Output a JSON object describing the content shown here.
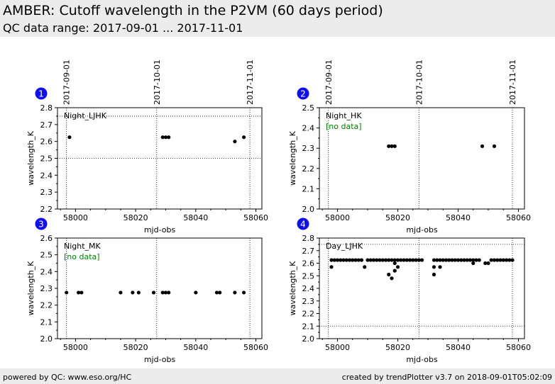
{
  "header": {
    "title": "AMBER: Cutoff wavelength in the P2VM (60 days period)",
    "subtitle": "QC data range: 2017-09-01 ... 2017-11-01"
  },
  "footer": {
    "left": "powered by QC: www.eso.org/HC",
    "right": "created by trendPlotter v3.7 on 2018-09-01T05:02:09"
  },
  "chart_data": [
    {
      "type": "scatter",
      "badge": "1",
      "label": "Night_LJHK",
      "no_data": "",
      "xlabel": "mjd-obs",
      "ylabel": "wavelength_K",
      "xlim": [
        57994,
        58062
      ],
      "ylim": [
        2.2,
        2.8
      ],
      "xticks": [
        58000,
        58020,
        58040,
        58060
      ],
      "yticks": [
        2.2,
        2.3,
        2.4,
        2.5,
        2.6,
        2.7,
        2.8
      ],
      "date_markers": [
        {
          "x": 57997,
          "label": "2017-09-01"
        },
        {
          "x": 58027,
          "label": "2017-10-01"
        },
        {
          "x": 58058,
          "label": "2017-11-01"
        }
      ],
      "hlines": [
        2.5,
        2.75
      ],
      "points": [
        {
          "x": 57998,
          "y": 2.625
        },
        {
          "x": 58029,
          "y": 2.625
        },
        {
          "x": 58030,
          "y": 2.625
        },
        {
          "x": 58031,
          "y": 2.625
        },
        {
          "x": 58053,
          "y": 2.6
        },
        {
          "x": 58056,
          "y": 2.625
        }
      ]
    },
    {
      "type": "scatter",
      "badge": "2",
      "label": "Night_HK",
      "no_data": "[no data]",
      "xlabel": "mjd-obs",
      "ylabel": "wavelength_K",
      "xlim": [
        57994,
        58062
      ],
      "ylim": [
        2.0,
        2.5
      ],
      "xticks": [
        58000,
        58020,
        58040,
        58060
      ],
      "yticks": [
        2.0,
        2.1,
        2.2,
        2.3,
        2.4,
        2.5
      ],
      "date_markers": [
        {
          "x": 57997,
          "label": "2017-09-01"
        },
        {
          "x": 58027,
          "label": "2017-10-01"
        },
        {
          "x": 58058,
          "label": "2017-11-01"
        }
      ],
      "hlines": [],
      "points": [
        {
          "x": 58017,
          "y": 2.31
        },
        {
          "x": 58018,
          "y": 2.31
        },
        {
          "x": 58019,
          "y": 2.31
        },
        {
          "x": 58048,
          "y": 2.31
        },
        {
          "x": 58052,
          "y": 2.31
        }
      ]
    },
    {
      "type": "scatter",
      "badge": "3",
      "label": "Night_MK",
      "no_data": "[no data]",
      "xlabel": "mjd-obs",
      "ylabel": "wavelength_K",
      "xlim": [
        57994,
        58062
      ],
      "ylim": [
        2.0,
        2.6
      ],
      "xticks": [
        58000,
        58020,
        58040,
        58060
      ],
      "yticks": [
        2.0,
        2.1,
        2.2,
        2.3,
        2.4,
        2.5,
        2.6
      ],
      "date_markers": [
        {
          "x": 57997,
          "label": "2017-09-01"
        },
        {
          "x": 58027,
          "label": "2017-10-01"
        },
        {
          "x": 58058,
          "label": "2017-11-01"
        }
      ],
      "hlines": [],
      "points": [
        {
          "x": 57997,
          "y": 2.275
        },
        {
          "x": 58001,
          "y": 2.275
        },
        {
          "x": 58002,
          "y": 2.275
        },
        {
          "x": 58015,
          "y": 2.275
        },
        {
          "x": 58019,
          "y": 2.275
        },
        {
          "x": 58021,
          "y": 2.275
        },
        {
          "x": 58026,
          "y": 2.275
        },
        {
          "x": 58029,
          "y": 2.275
        },
        {
          "x": 58030,
          "y": 2.275
        },
        {
          "x": 58031,
          "y": 2.275
        },
        {
          "x": 58040,
          "y": 2.275
        },
        {
          "x": 58047,
          "y": 2.275
        },
        {
          "x": 58048,
          "y": 2.275
        },
        {
          "x": 58053,
          "y": 2.275
        },
        {
          "x": 58056,
          "y": 2.275
        }
      ]
    },
    {
      "type": "scatter",
      "badge": "4",
      "label": "Day_LJHK",
      "no_data": "",
      "xlabel": "mjd-obs",
      "ylabel": "wavelength_K",
      "xlim": [
        57994,
        58062
      ],
      "ylim": [
        2.0,
        2.8
      ],
      "xticks": [
        58000,
        58020,
        58040,
        58060
      ],
      "yticks": [
        2.0,
        2.1,
        2.2,
        2.3,
        2.4,
        2.5,
        2.6,
        2.7,
        2.8
      ],
      "date_markers": [
        {
          "x": 57997,
          "label": "2017-09-01"
        },
        {
          "x": 58027,
          "label": "2017-10-01"
        },
        {
          "x": 58058,
          "label": "2017-11-01"
        }
      ],
      "hlines": [
        2.1,
        2.75
      ],
      "main_level": 2.625,
      "main_run": [
        [
          57998,
          58008
        ],
        [
          58010,
          58028
        ],
        [
          58032,
          58047
        ],
        [
          58051,
          58058
        ]
      ],
      "points": [
        {
          "x": 57998,
          "y": 2.57
        },
        {
          "x": 58009,
          "y": 2.57
        },
        {
          "x": 58017,
          "y": 2.51
        },
        {
          "x": 58018,
          "y": 2.48
        },
        {
          "x": 58019,
          "y": 2.54
        },
        {
          "x": 58019,
          "y": 2.6
        },
        {
          "x": 58020,
          "y": 2.57
        },
        {
          "x": 58032,
          "y": 2.51
        },
        {
          "x": 58032,
          "y": 2.57
        },
        {
          "x": 58034,
          "y": 2.57
        },
        {
          "x": 58045,
          "y": 2.6
        },
        {
          "x": 58049,
          "y": 2.6
        },
        {
          "x": 58050,
          "y": 2.6
        }
      ]
    }
  ]
}
